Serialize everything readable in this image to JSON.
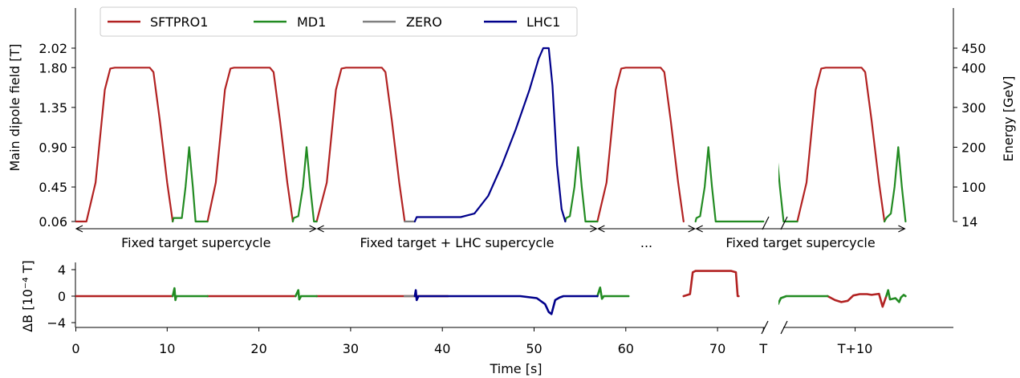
{
  "chart_data": [
    {
      "type": "line",
      "panel": "top",
      "ylabel": "Main dipole field [T]",
      "ylabel_right": "Energy [GeV]",
      "legend_position": "top",
      "colors": {
        "SFTPRO1": "#b22222",
        "MD1": "#228b22",
        "ZERO": "#808080",
        "LHC1": "#00008b"
      },
      "yticks": [
        "0.06",
        "0.45",
        "0.90",
        "1.35",
        "1.80",
        "2.02"
      ],
      "ytick_values": [
        0.06,
        0.45,
        0.9,
        1.35,
        1.8,
        2.02
      ],
      "yticks_right": [
        "14",
        "100",
        "200",
        "300",
        "400",
        "450"
      ],
      "ylim": [
        0.06,
        2.02
      ],
      "series": [
        {
          "name": "SFTPRO1",
          "segments": [
            [
              [
                0,
                0.06
              ],
              [
                1.2,
                0.06
              ],
              [
                2.2,
                0.5
              ],
              [
                3.2,
                1.55
              ],
              [
                3.8,
                1.79
              ],
              [
                4.3,
                1.8
              ],
              [
                8.1,
                1.8
              ],
              [
                8.5,
                1.75
              ],
              [
                9.2,
                1.2
              ],
              [
                10.0,
                0.5
              ],
              [
                10.6,
                0.06
              ]
            ],
            [
              [
                14.4,
                0.06
              ],
              [
                15.3,
                0.5
              ],
              [
                16.3,
                1.55
              ],
              [
                16.9,
                1.79
              ],
              [
                17.3,
                1.8
              ],
              [
                21.2,
                1.8
              ],
              [
                21.6,
                1.75
              ],
              [
                22.3,
                1.2
              ],
              [
                23.1,
                0.5
              ],
              [
                23.7,
                0.06
              ]
            ],
            [
              [
                26.3,
                0.06
              ],
              [
                27.4,
                0.5
              ],
              [
                28.4,
                1.55
              ],
              [
                29.0,
                1.79
              ],
              [
                29.5,
                1.8
              ],
              [
                33.4,
                1.8
              ],
              [
                33.8,
                1.75
              ],
              [
                34.5,
                1.2
              ],
              [
                35.3,
                0.5
              ],
              [
                35.9,
                0.06
              ]
            ],
            [
              [
                56.9,
                0.06
              ],
              [
                57.9,
                0.5
              ],
              [
                58.9,
                1.55
              ],
              [
                59.5,
                1.79
              ],
              [
                60.0,
                1.8
              ],
              [
                63.8,
                1.8
              ],
              [
                64.2,
                1.75
              ],
              [
                64.9,
                1.2
              ],
              [
                65.7,
                0.5
              ],
              [
                66.3,
                0.06
              ]
            ],
            [
              [
                78.7,
                0.06
              ],
              [
                79.7,
                0.5
              ],
              [
                80.7,
                1.55
              ],
              [
                81.3,
                1.79
              ],
              [
                81.8,
                1.8
              ],
              [
                85.7,
                1.8
              ],
              [
                86.1,
                1.75
              ],
              [
                86.8,
                1.2
              ],
              [
                87.6,
                0.5
              ],
              [
                88.2,
                0.06
              ]
            ]
          ]
        },
        {
          "name": "MD1",
          "segments": [
            [
              [
                10.6,
                0.06
              ],
              [
                10.7,
                0.1
              ],
              [
                11.6,
                0.1
              ],
              [
                12.0,
                0.45
              ],
              [
                12.4,
                0.9
              ],
              [
                12.8,
                0.45
              ],
              [
                13.1,
                0.06
              ],
              [
                14.4,
                0.06
              ]
            ],
            [
              [
                23.7,
                0.06
              ],
              [
                23.8,
                0.1
              ],
              [
                24.3,
                0.12
              ],
              [
                24.8,
                0.45
              ],
              [
                25.2,
                0.9
              ],
              [
                25.6,
                0.45
              ],
              [
                26.0,
                0.06
              ],
              [
                26.3,
                0.06
              ]
            ],
            [
              [
                53.4,
                0.06
              ],
              [
                53.5,
                0.1
              ],
              [
                53.9,
                0.12
              ],
              [
                54.4,
                0.45
              ],
              [
                54.8,
                0.9
              ],
              [
                55.2,
                0.45
              ],
              [
                55.6,
                0.06
              ],
              [
                56.9,
                0.06
              ]
            ],
            [
              [
                67.6,
                0.06
              ],
              [
                67.7,
                0.1
              ],
              [
                68.1,
                0.12
              ],
              [
                68.6,
                0.45
              ],
              [
                69.0,
                0.9
              ],
              [
                69.4,
                0.45
              ],
              [
                69.8,
                0.06
              ],
              [
                75.0,
                0.06
              ]
            ],
            [
              [
                75.0,
                0.06
              ],
              [
                75.6,
                0.1
              ],
              [
                76.1,
                0.45
              ],
              [
                76.4,
                0.88
              ],
              [
                76.8,
                0.45
              ],
              [
                77.2,
                0.06
              ],
              [
                78.7,
                0.06
              ]
            ],
            [
              [
                88.2,
                0.06
              ],
              [
                88.4,
                0.1
              ],
              [
                88.9,
                0.15
              ],
              [
                89.3,
                0.45
              ],
              [
                89.7,
                0.9
              ],
              [
                90.1,
                0.45
              ],
              [
                90.5,
                0.06
              ]
            ]
          ]
        },
        {
          "name": "ZERO",
          "segments": [
            [
              [
                35.9,
                0.06
              ],
              [
                37.0,
                0.06
              ]
            ]
          ]
        },
        {
          "name": "LHC1",
          "segments": [
            [
              [
                37.0,
                0.06
              ],
              [
                37.2,
                0.11
              ],
              [
                42.0,
                0.11
              ],
              [
                43.5,
                0.15
              ],
              [
                45.0,
                0.35
              ],
              [
                46.5,
                0.7
              ],
              [
                48.0,
                1.1
              ],
              [
                49.5,
                1.55
              ],
              [
                50.5,
                1.9
              ],
              [
                51.0,
                2.02
              ],
              [
                51.6,
                2.02
              ],
              [
                52.0,
                1.6
              ],
              [
                52.5,
                0.7
              ],
              [
                53.0,
                0.2
              ],
              [
                53.4,
                0.06
              ]
            ]
          ]
        }
      ],
      "annotations": [
        {
          "text": "Fixed target supercycle",
          "from": 0,
          "to": 26.3
        },
        {
          "text": "Fixed target + LHC supercycle",
          "from": 26.3,
          "to": 56.9
        },
        {
          "text": "...",
          "from": 56.9,
          "to": 67.6
        },
        {
          "text": "Fixed target supercycle",
          "from": 67.6,
          "to": 90.5
        }
      ]
    },
    {
      "type": "line",
      "panel": "bottom",
      "ylabel": "ΔB [10⁻⁴ T]",
      "xlabel": "Time [s]",
      "ylim": [
        -4.5,
        4.5
      ],
      "yticks": [
        "−4",
        "0",
        "4"
      ],
      "ytick_values": [
        -4,
        0,
        4
      ],
      "xticks": [
        "0",
        "10",
        "20",
        "30",
        "40",
        "50",
        "60",
        "70",
        "T",
        "T+10"
      ],
      "xtick_positions": [
        0,
        10,
        20,
        30,
        40,
        50,
        60,
        70,
        75,
        85
      ],
      "xlim": [
        0,
        90.5
      ],
      "axis_break": [
        72.5,
        75.0
      ],
      "series": [
        {
          "name": "SFTPRO1",
          "segments": [
            [
              [
                0,
                0
              ],
              [
                10.6,
                0
              ]
            ],
            [
              [
                14.4,
                0
              ],
              [
                24.0,
                0
              ]
            ],
            [
              [
                26.3,
                0
              ],
              [
                40.6,
                0
              ]
            ],
            [
              [
                66.3,
                0
              ],
              [
                67.0,
                0.3
              ],
              [
                67.3,
                3.6
              ],
              [
                67.6,
                3.8
              ],
              [
                71.5,
                3.8
              ],
              [
                72.0,
                3.6
              ],
              [
                72.2,
                0
              ],
              [
                72.3,
                0
              ]
            ],
            [
              [
                82.0,
                0
              ],
              [
                82.8,
                -0.6
              ],
              [
                83.5,
                -0.9
              ],
              [
                84.2,
                -0.7
              ],
              [
                84.8,
                0.1
              ],
              [
                85.5,
                0.3
              ],
              [
                86.3,
                0.3
              ],
              [
                86.8,
                0.2
              ],
              [
                87.6,
                0.35
              ],
              [
                88.0,
                -1.6
              ],
              [
                88.2,
                -0.8
              ],
              [
                88.4,
                0
              ]
            ]
          ]
        },
        {
          "name": "MD1",
          "segments": [
            [
              [
                10.6,
                0
              ],
              [
                10.8,
                1.2
              ],
              [
                10.9,
                -0.6
              ],
              [
                11.0,
                0
              ],
              [
                14.4,
                0
              ]
            ],
            [
              [
                24.0,
                0
              ],
              [
                24.3,
                0.9
              ],
              [
                24.4,
                -0.5
              ],
              [
                24.6,
                0
              ],
              [
                26.3,
                0
              ]
            ],
            [
              [
                56.9,
                0
              ],
              [
                57.2,
                1.3
              ],
              [
                57.4,
                -0.4
              ],
              [
                57.6,
                0
              ],
              [
                60.3,
                0
              ]
            ],
            [
              [
                75.0,
                0
              ],
              [
                75.1,
                1.1
              ],
              [
                75.2,
                -0.4
              ],
              [
                75.5,
                -0.2
              ],
              [
                76.3,
                -0.5
              ],
              [
                76.6,
                -1.2
              ],
              [
                76.9,
                -0.3
              ],
              [
                77.5,
                0
              ],
              [
                82.0,
                0
              ]
            ],
            [
              [
                88.4,
                0
              ],
              [
                88.6,
                0.9
              ],
              [
                88.8,
                -0.5
              ],
              [
                89.4,
                -0.3
              ],
              [
                89.8,
                -0.9
              ],
              [
                90.0,
                -0.2
              ],
              [
                90.3,
                0.2
              ],
              [
                90.5,
                0
              ]
            ]
          ]
        },
        {
          "name": "ZERO",
          "segments": [
            [
              [
                35.9,
                0
              ],
              [
                37.0,
                0
              ]
            ]
          ]
        },
        {
          "name": "LHC1",
          "segments": [
            [
              [
                37.0,
                0
              ],
              [
                37.1,
                0.9
              ],
              [
                37.2,
                -0.6
              ],
              [
                37.4,
                0
              ],
              [
                48.5,
                0
              ],
              [
                50.3,
                -0.3
              ],
              [
                51.2,
                -1.2
              ],
              [
                51.6,
                -2.4
              ],
              [
                51.9,
                -2.7
              ],
              [
                52.3,
                -0.6
              ],
              [
                52.8,
                -0.2
              ],
              [
                53.2,
                0
              ],
              [
                56.9,
                0
              ]
            ]
          ]
        }
      ]
    }
  ]
}
